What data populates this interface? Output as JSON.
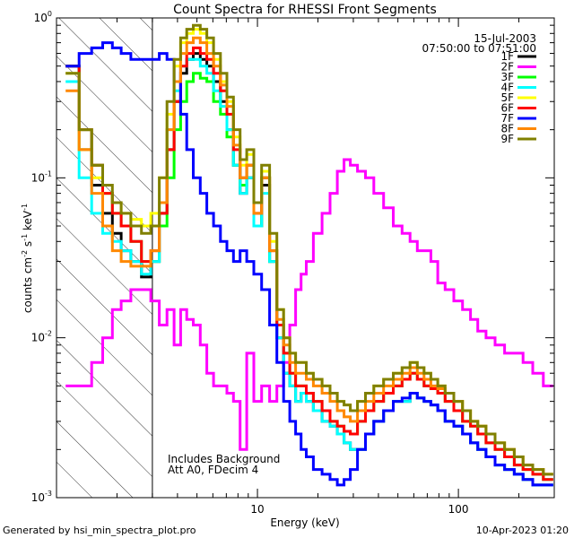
{
  "chart_data": {
    "type": "line",
    "title": "Count Spectra for RHESSI Front Segments",
    "xlabel": "Energy (keV)",
    "ylabel_parts": [
      "counts cm",
      "-2",
      " s",
      "-1",
      " keV",
      "-1"
    ],
    "x_scale": "log",
    "y_scale": "log",
    "xlim": [
      1,
      300
    ],
    "ylim": [
      0.001,
      1
    ],
    "x_ticks": [
      {
        "value": 10,
        "label": "10"
      },
      {
        "value": 100,
        "label": "100"
      }
    ],
    "y_ticks": [
      {
        "value": 1,
        "base": "10",
        "exp": "0"
      },
      {
        "value": 0.1,
        "base": "10",
        "exp": "-1"
      },
      {
        "value": 0.01,
        "base": "10",
        "exp": "-2"
      },
      {
        "value": 0.001,
        "base": "10",
        "exp": "-3"
      }
    ],
    "date": "15-Jul-2003",
    "time_range": "07:50:00 to 07:51:00",
    "annotations": [
      "Includes Background",
      "Att A0, FDecim 4"
    ],
    "hatched_region_upper_kev": 3,
    "legend_placement": "top-right",
    "x": [
      1.2,
      1.4,
      1.6,
      1.8,
      2.0,
      2.2,
      2.5,
      2.8,
      3.1,
      3.4,
      3.7,
      4.0,
      4.3,
      4.6,
      5.0,
      5.4,
      5.8,
      6.3,
      6.8,
      7.3,
      7.9,
      8.5,
      9.2,
      10,
      11,
      12,
      13,
      14,
      15,
      16,
      17,
      18,
      20,
      22,
      24,
      26,
      28,
      30,
      33,
      36,
      40,
      45,
      50,
      55,
      60,
      65,
      70,
      76,
      82,
      90,
      100,
      110,
      120,
      130,
      145,
      160,
      180,
      200,
      220,
      250,
      280
    ],
    "series": [
      {
        "name": "1F",
        "color": "#000000",
        "values": [
          0.5,
          0.15,
          0.09,
          0.06,
          0.045,
          0.035,
          0.03,
          0.024,
          0.03,
          0.06,
          0.15,
          0.3,
          0.45,
          0.55,
          0.6,
          0.55,
          0.5,
          0.4,
          0.3,
          0.2,
          0.12,
          0.08,
          0.1,
          0.05,
          0.09,
          0.03,
          0.01,
          0.006,
          0.005,
          0.004,
          0.0045,
          0.004,
          0.0035,
          0.003,
          0.0028,
          0.0025,
          0.0022,
          0.002,
          0.002,
          0.0025,
          0.003,
          0.0035,
          0.004,
          0.004,
          0.0045,
          0.0042,
          0.004,
          0.0038,
          0.0035,
          0.003,
          0.0028,
          0.0025,
          0.0022,
          0.002,
          0.0018,
          0.0016,
          0.0015,
          0.0014,
          0.0013,
          0.0012,
          0.0012
        ]
      },
      {
        "name": "2F",
        "color": "#ff00ff",
        "values": [
          0.005,
          0.005,
          0.007,
          0.01,
          0.015,
          0.017,
          0.02,
          0.02,
          0.017,
          0.012,
          0.015,
          0.009,
          0.015,
          0.013,
          0.012,
          0.009,
          0.006,
          0.005,
          0.005,
          0.0045,
          0.004,
          0.002,
          0.008,
          0.004,
          0.005,
          0.004,
          0.005,
          0.007,
          0.012,
          0.02,
          0.025,
          0.03,
          0.045,
          0.06,
          0.08,
          0.11,
          0.13,
          0.12,
          0.11,
          0.1,
          0.08,
          0.065,
          0.05,
          0.045,
          0.04,
          0.035,
          0.035,
          0.03,
          0.022,
          0.02,
          0.017,
          0.015,
          0.013,
          0.011,
          0.01,
          0.009,
          0.008,
          0.008,
          0.007,
          0.006,
          0.005
        ]
      },
      {
        "name": "3F",
        "color": "#00ff00",
        "values": [
          0.5,
          0.2,
          0.12,
          0.08,
          0.06,
          0.05,
          0.04,
          0.03,
          0.03,
          0.05,
          0.1,
          0.2,
          0.3,
          0.4,
          0.45,
          0.42,
          0.4,
          0.3,
          0.25,
          0.18,
          0.12,
          0.09,
          0.12,
          0.05,
          0.1,
          0.03,
          0.012,
          0.008,
          0.006,
          0.005,
          0.005,
          0.0045,
          0.004,
          0.0035,
          0.003,
          0.0028,
          0.0026,
          0.0025,
          0.003,
          0.0035,
          0.004,
          0.0045,
          0.005,
          0.0055,
          0.006,
          0.0055,
          0.005,
          0.0048,
          0.0045,
          0.004,
          0.0035,
          0.003,
          0.0028,
          0.0025,
          0.0022,
          0.002,
          0.0018,
          0.0016,
          0.0015,
          0.0014,
          0.0013
        ]
      },
      {
        "name": "4F",
        "color": "#00ffff",
        "values": [
          0.4,
          0.1,
          0.06,
          0.045,
          0.04,
          0.035,
          0.03,
          0.025,
          0.03,
          0.07,
          0.2,
          0.35,
          0.5,
          0.55,
          0.55,
          0.5,
          0.45,
          0.35,
          0.28,
          0.2,
          0.12,
          0.08,
          0.1,
          0.05,
          0.08,
          0.03,
          0.01,
          0.006,
          0.005,
          0.004,
          0.0045,
          0.004,
          0.0035,
          0.003,
          0.0028,
          0.0025,
          0.0022,
          0.002,
          0.002,
          0.0025,
          0.003,
          0.0035,
          0.004,
          0.004,
          0.0045,
          0.0042,
          0.004,
          0.0038,
          0.0035,
          0.003,
          0.0028,
          0.0025,
          0.0022,
          0.002,
          0.0018,
          0.0016,
          0.0015,
          0.0014,
          0.0013,
          0.0012,
          0.0012
        ]
      },
      {
        "name": "5F",
        "color": "#ffff00",
        "values": [
          0.45,
          0.15,
          0.1,
          0.08,
          0.07,
          0.06,
          0.055,
          0.05,
          0.06,
          0.1,
          0.25,
          0.5,
          0.7,
          0.8,
          0.85,
          0.8,
          0.7,
          0.55,
          0.4,
          0.3,
          0.18,
          0.12,
          0.14,
          0.07,
          0.11,
          0.04,
          0.015,
          0.01,
          0.008,
          0.007,
          0.007,
          0.006,
          0.0055,
          0.005,
          0.0045,
          0.004,
          0.0038,
          0.0035,
          0.004,
          0.0045,
          0.005,
          0.0055,
          0.006,
          0.0065,
          0.007,
          0.0065,
          0.006,
          0.0055,
          0.005,
          0.0045,
          0.004,
          0.0035,
          0.003,
          0.0028,
          0.0025,
          0.0022,
          0.002,
          0.0018,
          0.0016,
          0.0015,
          0.0014
        ]
      },
      {
        "name": "6F",
        "color": "#ff0000",
        "values": [
          0.5,
          0.2,
          0.12,
          0.08,
          0.06,
          0.05,
          0.04,
          0.03,
          0.035,
          0.06,
          0.15,
          0.3,
          0.5,
          0.6,
          0.65,
          0.6,
          0.55,
          0.45,
          0.35,
          0.25,
          0.15,
          0.1,
          0.12,
          0.06,
          0.1,
          0.035,
          0.012,
          0.008,
          0.006,
          0.005,
          0.005,
          0.0045,
          0.004,
          0.0035,
          0.003,
          0.0028,
          0.0026,
          0.0025,
          0.003,
          0.0035,
          0.004,
          0.0045,
          0.005,
          0.0055,
          0.006,
          0.0055,
          0.005,
          0.0048,
          0.0045,
          0.004,
          0.0035,
          0.003,
          0.0028,
          0.0025,
          0.0022,
          0.002,
          0.0018,
          0.0016,
          0.0015,
          0.0014,
          0.0013
        ]
      },
      {
        "name": "7F",
        "color": "#0000ff",
        "values": [
          0.5,
          0.6,
          0.65,
          0.7,
          0.65,
          0.6,
          0.55,
          0.55,
          0.55,
          0.6,
          0.55,
          0.4,
          0.25,
          0.15,
          0.1,
          0.08,
          0.06,
          0.05,
          0.04,
          0.035,
          0.03,
          0.035,
          0.03,
          0.025,
          0.02,
          0.012,
          0.007,
          0.004,
          0.003,
          0.0025,
          0.002,
          0.0018,
          0.0015,
          0.0014,
          0.0013,
          0.0012,
          0.0013,
          0.0015,
          0.002,
          0.0025,
          0.003,
          0.0035,
          0.004,
          0.0042,
          0.0045,
          0.0042,
          0.004,
          0.0038,
          0.0035,
          0.003,
          0.0028,
          0.0025,
          0.0022,
          0.002,
          0.0018,
          0.0016,
          0.0015,
          0.0014,
          0.0013,
          0.0012,
          0.0012
        ]
      },
      {
        "name": "8F",
        "color": "#ff8800",
        "values": [
          0.35,
          0.15,
          0.08,
          0.05,
          0.035,
          0.03,
          0.028,
          0.028,
          0.035,
          0.07,
          0.2,
          0.4,
          0.6,
          0.7,
          0.75,
          0.7,
          0.6,
          0.5,
          0.38,
          0.28,
          0.16,
          0.1,
          0.12,
          0.06,
          0.1,
          0.035,
          0.013,
          0.009,
          0.007,
          0.006,
          0.006,
          0.0055,
          0.005,
          0.0045,
          0.004,
          0.0035,
          0.0032,
          0.003,
          0.0035,
          0.004,
          0.0045,
          0.005,
          0.0055,
          0.006,
          0.0065,
          0.006,
          0.0055,
          0.005,
          0.0048,
          0.0045,
          0.004,
          0.0035,
          0.003,
          0.0028,
          0.0025,
          0.0022,
          0.002,
          0.0018,
          0.0016,
          0.0015,
          0.0014
        ]
      },
      {
        "name": "9F",
        "color": "#808000",
        "values": [
          0.45,
          0.2,
          0.12,
          0.09,
          0.07,
          0.06,
          0.05,
          0.045,
          0.05,
          0.1,
          0.3,
          0.55,
          0.75,
          0.85,
          0.9,
          0.85,
          0.75,
          0.6,
          0.45,
          0.32,
          0.2,
          0.13,
          0.15,
          0.07,
          0.12,
          0.045,
          0.015,
          0.01,
          0.008,
          0.007,
          0.007,
          0.006,
          0.0055,
          0.005,
          0.0045,
          0.004,
          0.0038,
          0.0035,
          0.004,
          0.0045,
          0.005,
          0.0055,
          0.006,
          0.0065,
          0.007,
          0.0065,
          0.006,
          0.0055,
          0.005,
          0.0045,
          0.004,
          0.0035,
          0.003,
          0.0028,
          0.0025,
          0.0022,
          0.002,
          0.0018,
          0.0016,
          0.0015,
          0.0014
        ]
      }
    ]
  },
  "footer": {
    "left": "Generated by hsi_min_spectra_plot.pro",
    "right": "10-Apr-2023 01:20"
  }
}
